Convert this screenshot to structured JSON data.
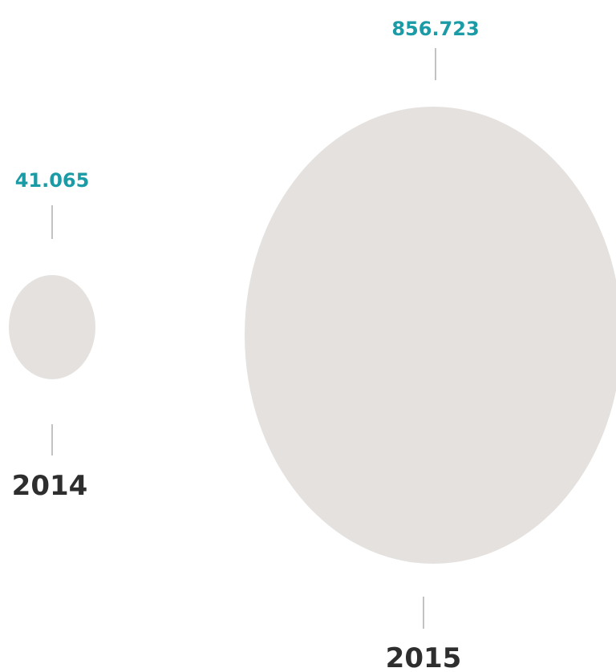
{
  "chart_data": {
    "type": "bubble",
    "categories": [
      "2014",
      "2015"
    ],
    "values": [
      41065,
      856723
    ],
    "value_labels": [
      "41.065",
      "856.723"
    ],
    "bubble_color": "#e5e1df",
    "value_label_color": "#1a9ba6",
    "category_label_color": "#2e2e2e",
    "connector_color": "#a8a8a8"
  }
}
